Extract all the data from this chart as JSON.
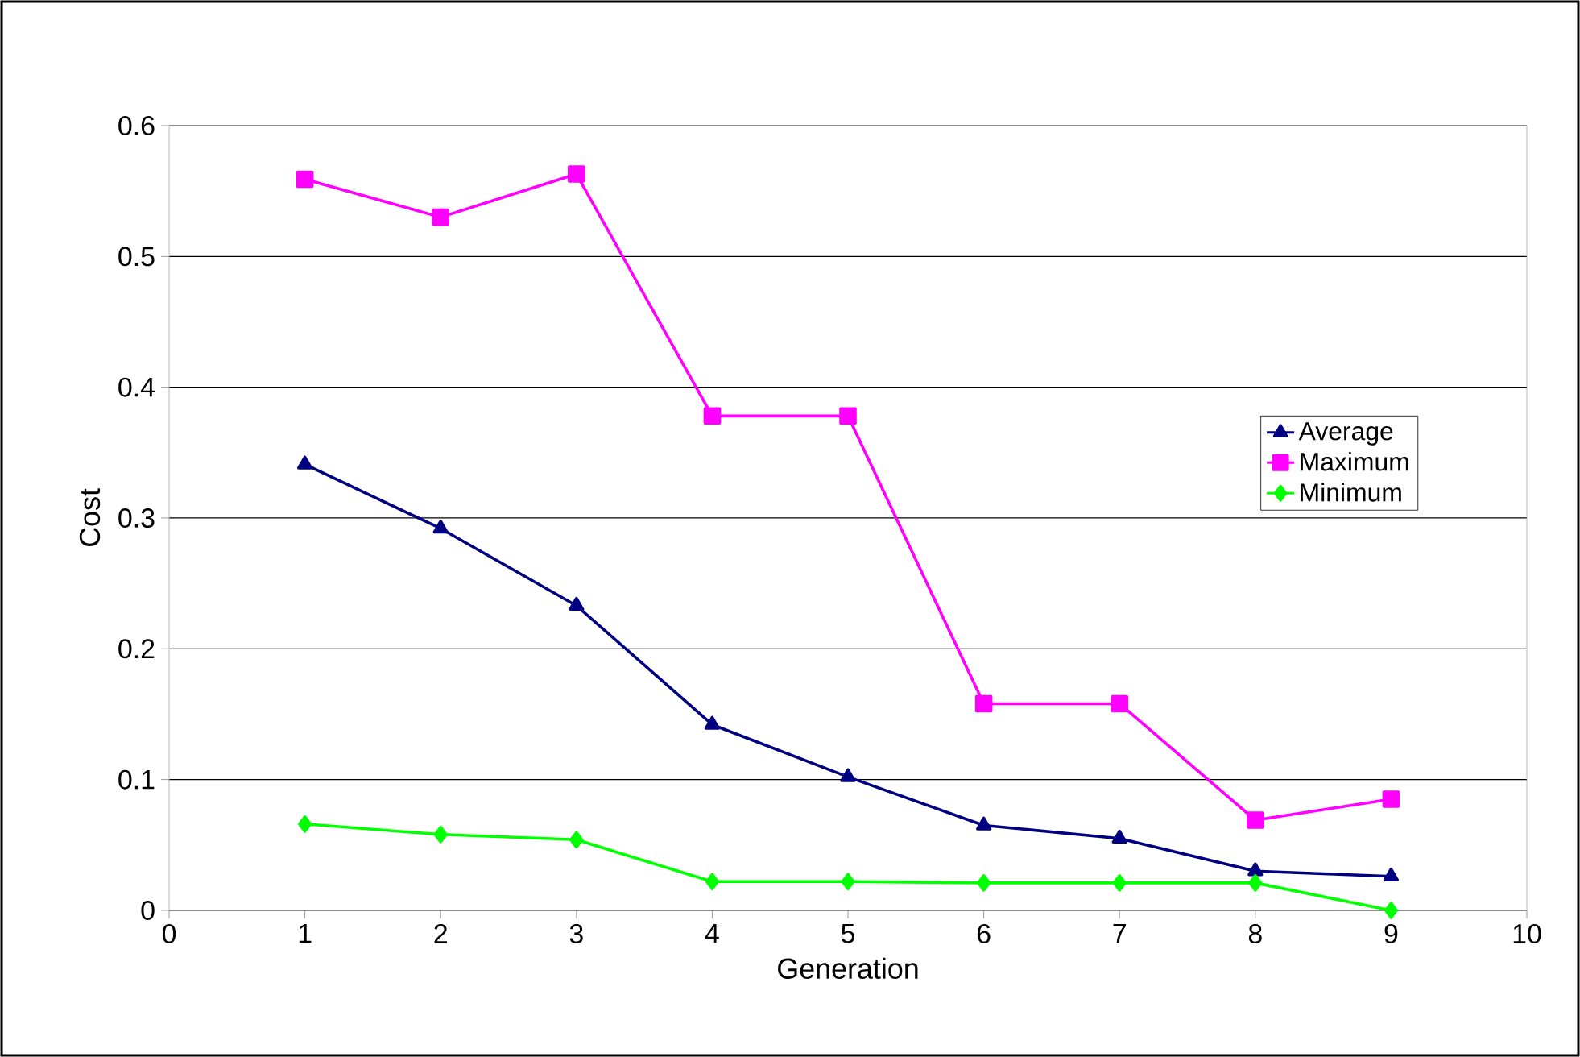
{
  "chart_data": {
    "type": "line",
    "xlabel": "Generation",
    "ylabel": "Cost",
    "x": [
      1,
      2,
      3,
      4,
      5,
      6,
      7,
      8,
      9
    ],
    "series": [
      {
        "name": "Average",
        "color": "#000080",
        "marker": "triangle",
        "values": [
          0.341,
          0.292,
          0.233,
          0.142,
          0.102,
          0.065,
          0.055,
          0.03,
          0.026
        ]
      },
      {
        "name": "Maximum",
        "color": "#ff00ff",
        "marker": "square",
        "values": [
          0.559,
          0.53,
          0.563,
          0.378,
          0.378,
          0.158,
          0.158,
          0.069,
          0.085
        ]
      },
      {
        "name": "Minimum",
        "color": "#00ff00",
        "marker": "diamond",
        "values": [
          0.066,
          0.058,
          0.054,
          0.022,
          0.022,
          0.021,
          0.021,
          0.021,
          0
        ]
      }
    ],
    "xlim": [
      0,
      10
    ],
    "xticks": [
      0,
      1,
      2,
      3,
      4,
      5,
      6,
      7,
      8,
      9,
      10
    ],
    "ylim": [
      0,
      0.6
    ],
    "yticks": [
      0,
      0.1,
      0.2,
      0.3,
      0.4,
      0.5,
      0.6
    ],
    "grid": "y",
    "legend": "right",
    "line_style": "solid"
  }
}
